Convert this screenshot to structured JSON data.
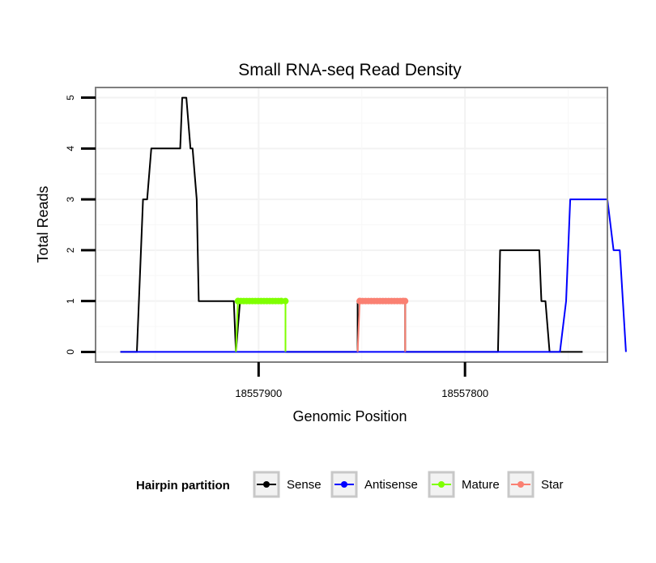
{
  "chart_data": {
    "type": "line",
    "title": "Small RNA-seq Read Density",
    "xlabel": "Genomic Position",
    "ylabel": "Total Reads",
    "x_reversed": true,
    "xlim": [
      18557979,
      18557731
    ],
    "ylim": [
      -0.2,
      5.2
    ],
    "x_ticks": [
      18557900,
      18557800
    ],
    "x_tick_labels": [
      "18557900",
      "18557800"
    ],
    "y_ticks": [
      0,
      1,
      2,
      3,
      4,
      5
    ],
    "y_tick_labels": [
      "0",
      "1",
      "2",
      "3",
      "4",
      "5"
    ],
    "grid": true,
    "legend": {
      "title": "Hairpin partition",
      "placement": "bottom",
      "entries": [
        "Sense",
        "Antisense",
        "Mature",
        "Star"
      ]
    },
    "series": [
      {
        "name": "Sense",
        "color": "#000000",
        "marker": false,
        "x": [
          18557967,
          18557959,
          18557956,
          18557954,
          18557952,
          18557938,
          18557937,
          18557935,
          18557933,
          18557932,
          18557930,
          18557929,
          18557925,
          18557912,
          18557911,
          18557909,
          18557887,
          18557887,
          18557852,
          18557852,
          18557829,
          18557829,
          18557784,
          18557783,
          18557764,
          18557763,
          18557761,
          18557759,
          18557756,
          18557750,
          18557743
        ],
        "y": [
          0,
          0,
          3,
          3,
          4,
          4,
          5,
          5,
          4,
          4,
          3,
          1,
          1,
          1,
          0,
          1,
          1,
          0,
          0,
          1,
          1,
          0,
          0,
          2,
          2,
          1,
          1,
          0,
          0,
          0,
          0
        ]
      },
      {
        "name": "Antisense",
        "color": "#0000ff",
        "marker": false,
        "x": [
          18557967,
          18557758,
          18557754,
          18557751,
          18557749,
          18557731,
          18557728,
          18557725,
          18557722
        ],
        "y": [
          0,
          0,
          0,
          1,
          3,
          3,
          2,
          2,
          0
        ]
      },
      {
        "name": "Mature",
        "color": "#7fff00",
        "marker": true,
        "x": [
          18557911,
          18557910,
          18557910,
          18557889,
          18557887,
          18557887
        ],
        "y": [
          0,
          1,
          1,
          1,
          1,
          0
        ]
      },
      {
        "name": "Star",
        "color": "#fa8072",
        "marker": true,
        "x": [
          18557852,
          18557851,
          18557851,
          18557830,
          18557829,
          18557829
        ],
        "y": [
          0,
          1,
          1,
          1,
          1,
          0
        ]
      }
    ]
  }
}
